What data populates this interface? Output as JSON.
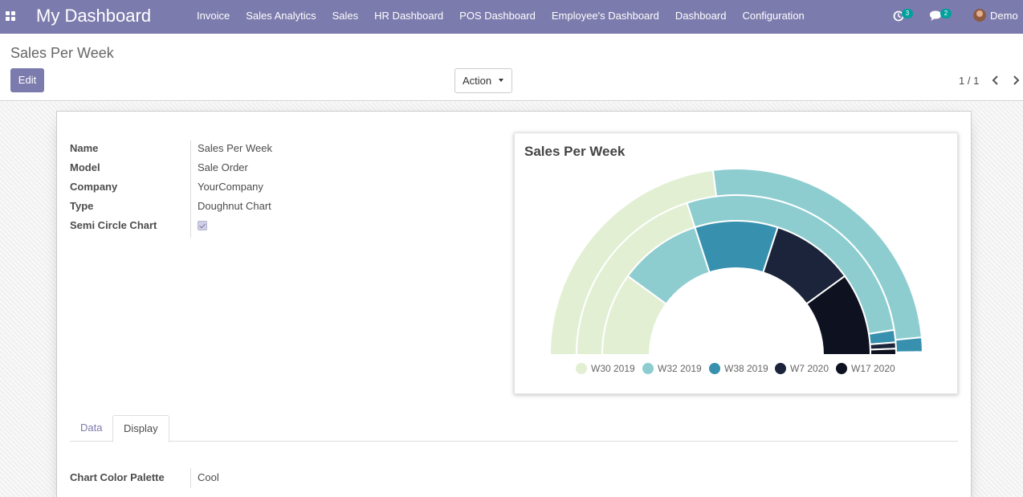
{
  "navbar": {
    "app_title": "My Dashboard",
    "menu": [
      "Invoice",
      "Sales Analytics",
      "Sales",
      "HR Dashboard",
      "POS Dashboard",
      "Employee's Dashboard",
      "Dashboard",
      "Configuration"
    ],
    "activity_count": "3",
    "messages_count": "2",
    "user_name": "Demo",
    "color": "#7c7bad"
  },
  "control_panel": {
    "breadcrumb": "Sales Per Week",
    "edit_label": "Edit",
    "action_label": "Action",
    "pager_value": "1 / 1"
  },
  "form": {
    "fields": [
      {
        "label": "Name",
        "value": "Sales Per Week"
      },
      {
        "label": "Model",
        "value": "Sale Order"
      },
      {
        "label": "Company",
        "value": "YourCompany"
      },
      {
        "label": "Type",
        "value": "Doughnut Chart"
      },
      {
        "label": "Semi Circle Chart",
        "checked": true
      }
    ],
    "tabs": [
      "Data",
      "Display"
    ],
    "active_tab": "Display",
    "palette": {
      "label": "Chart Color Palette",
      "value": "Cool"
    }
  },
  "chart_data": {
    "type": "doughnut",
    "semi_circle": true,
    "title": "Sales Per Week",
    "legend_position": "bottom",
    "categories": [
      "W30 2019",
      "W32 2019",
      "W38 2019",
      "W7 2020",
      "W17 2020"
    ],
    "colors": [
      "#e2efd3",
      "#8dcdd0",
      "#3690ae",
      "#1b243a",
      "#0e1220"
    ],
    "rings": [
      {
        "values": [
          46,
          51,
          2.5,
          0.25,
          0.25
        ]
      },
      {
        "values": [
          40,
          55,
          2.5,
          1.25,
          1.25
        ]
      },
      {
        "values": [
          20,
          20,
          20,
          20,
          20
        ]
      }
    ]
  }
}
